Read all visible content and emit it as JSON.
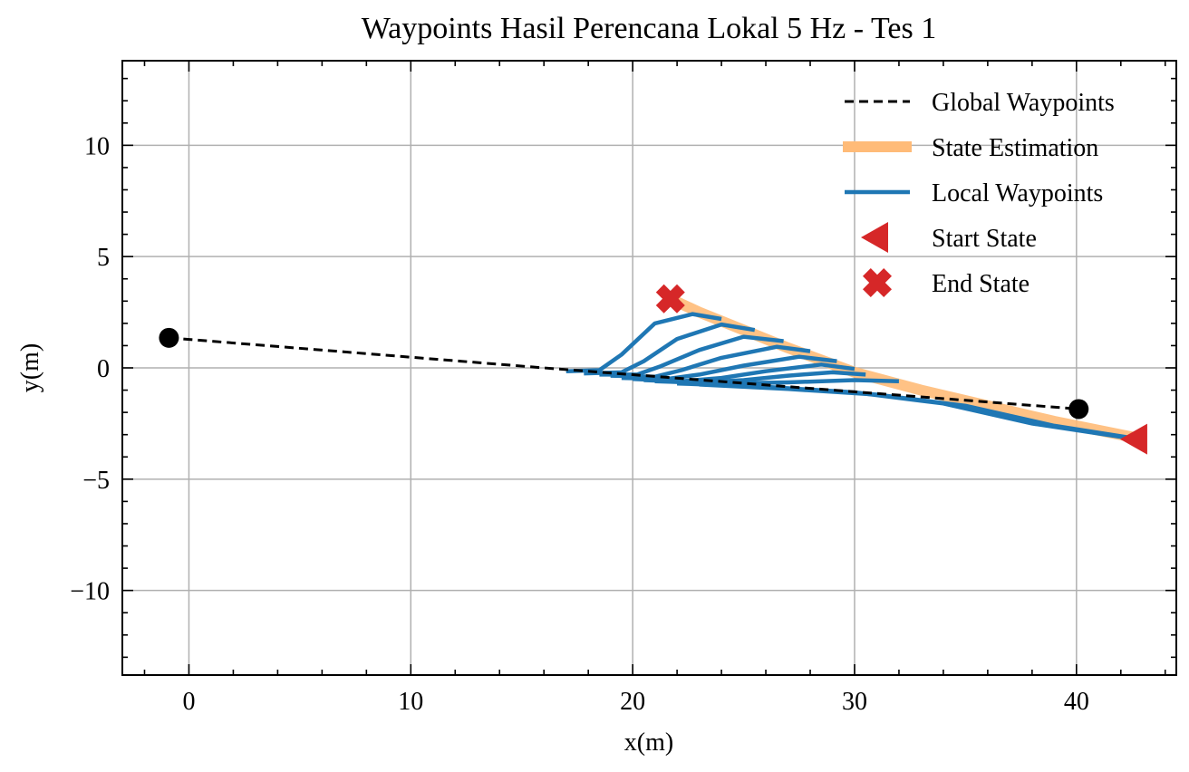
{
  "chart_data": {
    "type": "line",
    "title": "Waypoints Hasil Perencana Lokal 5 Hz - Tes 1",
    "xlabel": "x(m)",
    "ylabel": "y(m)",
    "xlim": [
      -3,
      44.5
    ],
    "ylim": [
      -13.8,
      13.8
    ],
    "xticks": [
      0,
      10,
      20,
      30,
      40
    ],
    "yticks": [
      -10,
      -5,
      0,
      5,
      10
    ],
    "xtick_labels": [
      "0",
      "10",
      "20",
      "30",
      "40"
    ],
    "ytick_labels": [
      "−10",
      "−5",
      "0",
      "5",
      "10"
    ],
    "grid": true,
    "legend_position": "top-right",
    "legend": [
      {
        "label": "Global Waypoints",
        "style": "dashed-line",
        "color": "#000000"
      },
      {
        "label": "State Estimation",
        "style": "thick-line",
        "color": "#ffbb78"
      },
      {
        "label": "Local Waypoints",
        "style": "line",
        "color": "#1f77b4"
      },
      {
        "label": "Start State",
        "style": "triangle-left-marker",
        "color": "#d62728"
      },
      {
        "label": "End State",
        "style": "x-marker",
        "color": "#d62728"
      }
    ],
    "colors": {
      "global": "#000000",
      "state": "#ffbb78",
      "local": "#1f77b4",
      "start": "#d62728",
      "end": "#d62728",
      "grid": "#b0b0b0"
    },
    "global_waypoints": {
      "x": [
        -0.9,
        16,
        40.1
      ],
      "y": [
        1.35,
        0.0,
        -1.85
      ]
    },
    "state_estimation": {
      "x": [
        42.5,
        39,
        36,
        33,
        30,
        27,
        24.5,
        23,
        21.7
      ],
      "y": [
        -3.1,
        -2.4,
        -1.7,
        -1.0,
        -0.2,
        0.9,
        1.9,
        2.5,
        3.1
      ]
    },
    "local_waypoints": [
      {
        "x": [
          17,
          18.5,
          19.5,
          21,
          22.7,
          24.0
        ],
        "y": [
          -0.15,
          -0.1,
          0.6,
          2.0,
          2.42,
          2.2
        ]
      },
      {
        "x": [
          17.8,
          19.5,
          20.5,
          22,
          24,
          25.5
        ],
        "y": [
          -0.25,
          -0.2,
          0.3,
          1.3,
          1.95,
          1.7
        ]
      },
      {
        "x": [
          18.5,
          20.2,
          21.2,
          23,
          25,
          26.8
        ],
        "y": [
          -0.3,
          -0.3,
          0.05,
          0.8,
          1.4,
          1.2
        ]
      },
      {
        "x": [
          19.0,
          21,
          22.2,
          24,
          26.5,
          28.0
        ],
        "y": [
          -0.35,
          -0.4,
          -0.1,
          0.45,
          0.95,
          0.75
        ]
      },
      {
        "x": [
          19.5,
          21.5,
          23,
          25,
          27.5,
          29.2
        ],
        "y": [
          -0.45,
          -0.5,
          -0.3,
          0.1,
          0.5,
          0.3
        ]
      },
      {
        "x": [
          20,
          22.2,
          24,
          26,
          28.5,
          30.0
        ],
        "y": [
          -0.5,
          -0.6,
          -0.45,
          -0.15,
          0.15,
          -0.05
        ]
      },
      {
        "x": [
          20.5,
          23,
          25,
          27,
          29,
          30.5
        ],
        "y": [
          -0.55,
          -0.65,
          -0.55,
          -0.35,
          -0.2,
          -0.3
        ]
      },
      {
        "x": [
          21,
          24,
          27,
          30,
          32
        ],
        "y": [
          -0.6,
          -0.7,
          -0.65,
          -0.55,
          -0.6
        ]
      },
      {
        "x": [
          22,
          26,
          30,
          34,
          38,
          42
        ],
        "y": [
          -0.7,
          -0.85,
          -1.1,
          -1.6,
          -2.5,
          -3.1
        ]
      },
      {
        "x": [
          23,
          27,
          31,
          35,
          39,
          42.5
        ],
        "y": [
          -0.75,
          -0.95,
          -1.2,
          -1.7,
          -2.6,
          -3.15
        ]
      }
    ],
    "start_state": {
      "x": 42.7,
      "y": -3.2
    },
    "end_state": {
      "x": 21.7,
      "y": 3.1
    },
    "global_endpoints": [
      {
        "x": -0.9,
        "y": 1.35
      },
      {
        "x": 40.1,
        "y": -1.85
      }
    ]
  }
}
